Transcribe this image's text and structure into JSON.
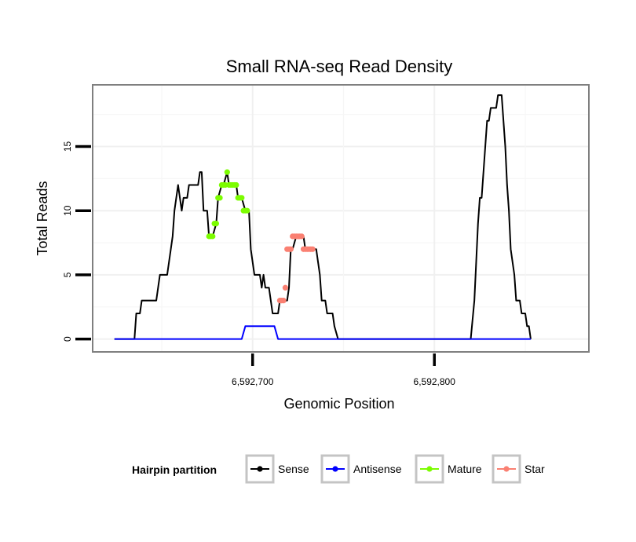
{
  "chart_data": {
    "type": "line",
    "title": "Small RNA-seq Read Density",
    "xlabel": "Genomic Position",
    "ylabel": "Total Reads",
    "xlim": [
      6592612,
      6592885
    ],
    "ylim": [
      -1,
      19.8
    ],
    "x_ticks": [
      6592700,
      6592800
    ],
    "x_tick_labels": [
      "6,592,700",
      "6,592,800"
    ],
    "y_ticks": [
      0,
      5,
      10,
      15
    ],
    "y_tick_labels": [
      "0",
      "5",
      "10",
      "15"
    ],
    "legend": {
      "title": "Hairpin partition",
      "position": "bottom",
      "entries": [
        {
          "name": "Sense",
          "color": "#000000"
        },
        {
          "name": "Antisense",
          "color": "#0000ff"
        },
        {
          "name": "Mature",
          "color": "#7cfc00"
        },
        {
          "name": "Star",
          "color": "#fa8072"
        }
      ]
    },
    "series": [
      {
        "name": "Sense",
        "color": "#000000",
        "style": "line",
        "points": [
          [
            6592624,
            0
          ],
          [
            6592635,
            0
          ],
          [
            6592636,
            2
          ],
          [
            6592638,
            2
          ],
          [
            6592639,
            3
          ],
          [
            6592647,
            3
          ],
          [
            6592649,
            5
          ],
          [
            6592653,
            5
          ],
          [
            6592655,
            7
          ],
          [
            6592656,
            8
          ],
          [
            6592657,
            10
          ],
          [
            6592659,
            12
          ],
          [
            6592660,
            11
          ],
          [
            6592661,
            10
          ],
          [
            6592662,
            11
          ],
          [
            6592664,
            11
          ],
          [
            6592665,
            12
          ],
          [
            6592670,
            12
          ],
          [
            6592671,
            13
          ],
          [
            6592672,
            13
          ],
          [
            6592673,
            10
          ],
          [
            6592675,
            10
          ],
          [
            6592676,
            8
          ],
          [
            6592678,
            8
          ],
          [
            6592680,
            9
          ],
          [
            6592681,
            11
          ],
          [
            6592683,
            12
          ],
          [
            6592684,
            12
          ],
          [
            6592686,
            13
          ],
          [
            6592687,
            12
          ],
          [
            6592691,
            12
          ],
          [
            6592692,
            11
          ],
          [
            6592694,
            11
          ],
          [
            6592696,
            10
          ],
          [
            6592698,
            10
          ],
          [
            6592699,
            7
          ],
          [
            6592701,
            5
          ],
          [
            6592704,
            5
          ],
          [
            6592705,
            4
          ],
          [
            6592706,
            5
          ],
          [
            6592707,
            4
          ],
          [
            6592709,
            4
          ],
          [
            6592711,
            2
          ],
          [
            6592714,
            2
          ],
          [
            6592715,
            3
          ],
          [
            6592719,
            3
          ],
          [
            6592720,
            4
          ],
          [
            6592721,
            7
          ],
          [
            6592722,
            7
          ],
          [
            6592724,
            8
          ],
          [
            6592728,
            8
          ],
          [
            6592729,
            7
          ],
          [
            6592735,
            7
          ],
          [
            6592736,
            6
          ],
          [
            6592737,
            5
          ],
          [
            6592738,
            3
          ],
          [
            6592740,
            3
          ],
          [
            6592741,
            2
          ],
          [
            6592744,
            2
          ],
          [
            6592745,
            1
          ],
          [
            6592747,
            0
          ],
          [
            6592798,
            0
          ],
          [
            6592820,
            0
          ],
          [
            6592822,
            3
          ],
          [
            6592823,
            6
          ],
          [
            6592824,
            9
          ],
          [
            6592825,
            11
          ],
          [
            6592826,
            11
          ],
          [
            6592827,
            13
          ],
          [
            6592828,
            15
          ],
          [
            6592829,
            17
          ],
          [
            6592830,
            17
          ],
          [
            6592831,
            18
          ],
          [
            6592834,
            18
          ],
          [
            6592835,
            19
          ],
          [
            6592837,
            19
          ],
          [
            6592838,
            17
          ],
          [
            6592839,
            15
          ],
          [
            6592840,
            12
          ],
          [
            6592841,
            10
          ],
          [
            6592842,
            7
          ],
          [
            6592843,
            6
          ],
          [
            6592844,
            5
          ],
          [
            6592845,
            3
          ],
          [
            6592847,
            3
          ],
          [
            6592848,
            2
          ],
          [
            6592850,
            2
          ],
          [
            6592851,
            1
          ],
          [
            6592852,
            1
          ],
          [
            6592853,
            0
          ]
        ]
      },
      {
        "name": "Antisense",
        "color": "#0000ff",
        "style": "line",
        "points": [
          [
            6592624,
            0
          ],
          [
            6592694,
            0
          ],
          [
            6592696,
            1
          ],
          [
            6592712,
            1
          ],
          [
            6592714,
            0
          ],
          [
            6592853,
            0
          ]
        ]
      },
      {
        "name": "Mature",
        "color": "#7cfc00",
        "style": "points",
        "points": [
          [
            6592676,
            8
          ],
          [
            6592677,
            8
          ],
          [
            6592678,
            8
          ],
          [
            6592679,
            9
          ],
          [
            6592680,
            9
          ],
          [
            6592681,
            11
          ],
          [
            6592682,
            11
          ],
          [
            6592683,
            12
          ],
          [
            6592684,
            12
          ],
          [
            6592685,
            12
          ],
          [
            6592686,
            13
          ],
          [
            6592687,
            12
          ],
          [
            6592688,
            12
          ],
          [
            6592689,
            12
          ],
          [
            6592690,
            12
          ],
          [
            6592691,
            12
          ],
          [
            6592692,
            11
          ],
          [
            6592693,
            11
          ],
          [
            6592694,
            11
          ],
          [
            6592695,
            10
          ],
          [
            6592696,
            10
          ],
          [
            6592697,
            10
          ]
        ]
      },
      {
        "name": "Star",
        "color": "#fa8072",
        "style": "points",
        "points": [
          [
            6592715,
            3
          ],
          [
            6592716,
            3
          ],
          [
            6592717,
            3
          ],
          [
            6592718,
            4
          ],
          [
            6592719,
            7
          ],
          [
            6592720,
            7
          ],
          [
            6592721,
            7
          ],
          [
            6592722,
            8
          ],
          [
            6592723,
            8
          ],
          [
            6592724,
            8
          ],
          [
            6592725,
            8
          ],
          [
            6592726,
            8
          ],
          [
            6592727,
            8
          ],
          [
            6592728,
            7
          ],
          [
            6592729,
            7
          ],
          [
            6592730,
            7
          ],
          [
            6592731,
            7
          ],
          [
            6592732,
            7
          ],
          [
            6592733,
            7
          ]
        ]
      }
    ]
  }
}
